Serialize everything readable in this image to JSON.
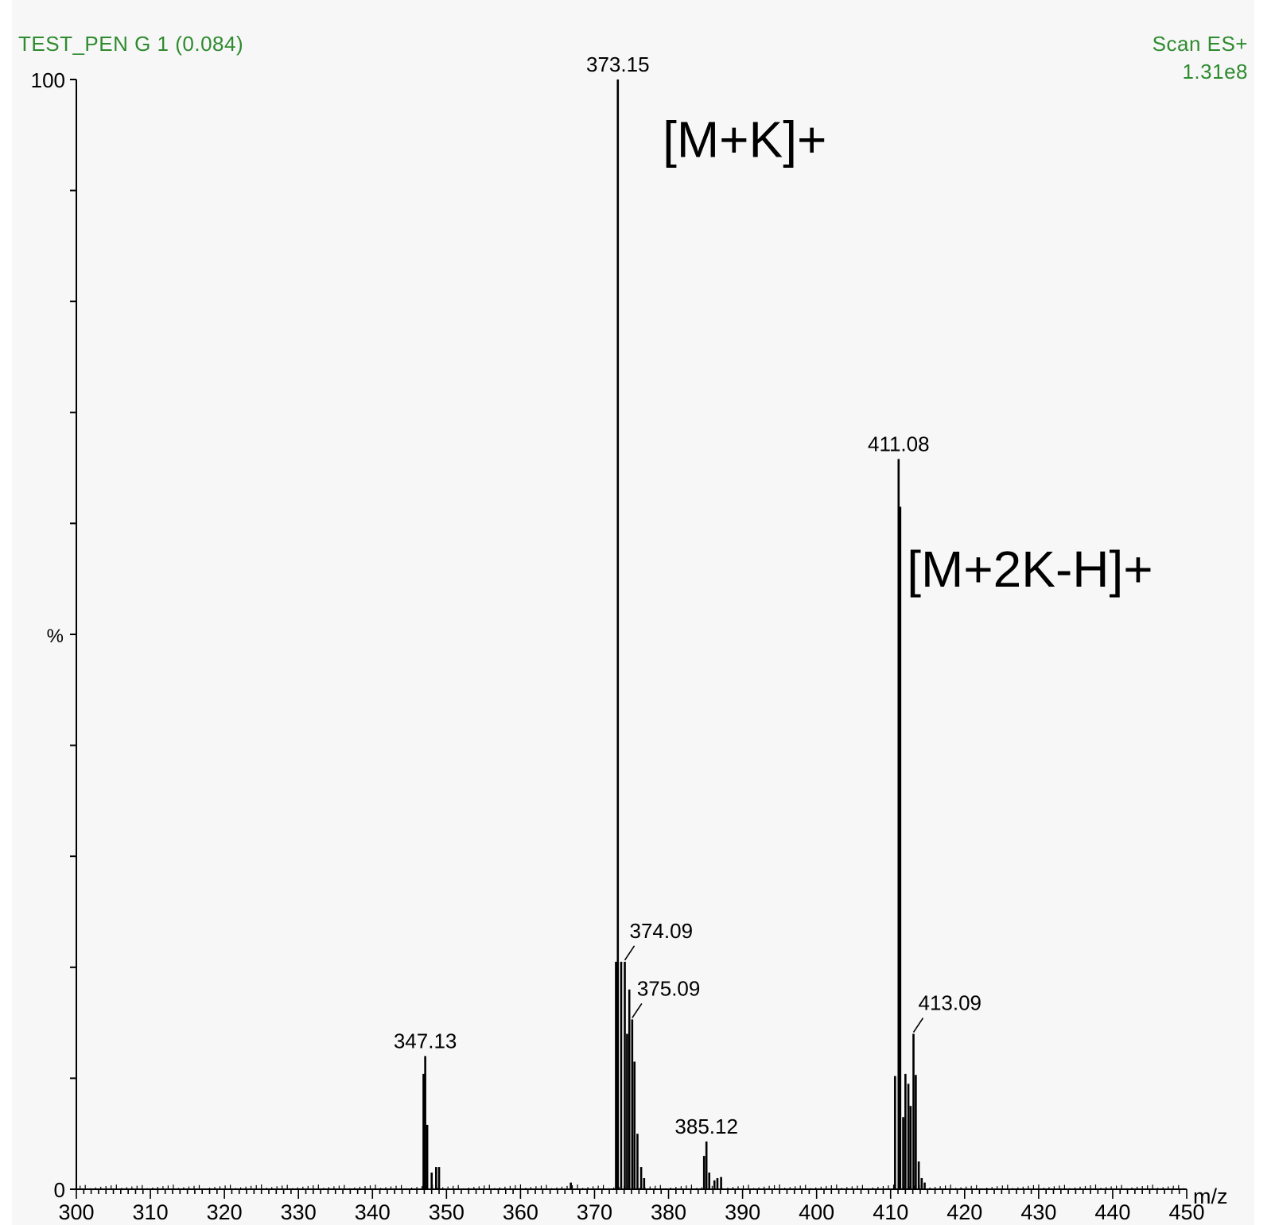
{
  "header": {
    "sample": "TEST_PEN G 1 (0.084)",
    "scan_mode": "Scan ES+",
    "base_peak_intensity": "1.31e8"
  },
  "colors": {
    "header_text": "#2e8b2e",
    "trace": "#000000",
    "background": "#f7f7f8"
  },
  "chart_data": {
    "type": "bar",
    "title": "",
    "xlabel": "m/z",
    "ylabel": "%",
    "xlim": [
      300,
      450
    ],
    "ylim": [
      0,
      100
    ],
    "x_ticks": [
      300,
      310,
      320,
      330,
      340,
      350,
      360,
      370,
      380,
      390,
      400,
      410,
      420,
      430,
      440,
      450
    ],
    "y_tick_labels": [
      "0",
      "100"
    ],
    "grid": false,
    "peaks": [
      {
        "mz": 346.9,
        "intensity": 10.4
      },
      {
        "mz": 347.13,
        "intensity": 12.0
      },
      {
        "mz": 347.4,
        "intensity": 5.8
      },
      {
        "mz": 348.0,
        "intensity": 1.5
      },
      {
        "mz": 348.6,
        "intensity": 2.0
      },
      {
        "mz": 349.0,
        "intensity": 2.0
      },
      {
        "mz": 366.8,
        "intensity": 0.6
      },
      {
        "mz": 372.9,
        "intensity": 20.5
      },
      {
        "mz": 373.15,
        "intensity": 100.0
      },
      {
        "mz": 373.6,
        "intensity": 20.5
      },
      {
        "mz": 374.09,
        "intensity": 20.5
      },
      {
        "mz": 374.4,
        "intensity": 14.0
      },
      {
        "mz": 374.7,
        "intensity": 18.0
      },
      {
        "mz": 375.09,
        "intensity": 15.3
      },
      {
        "mz": 375.4,
        "intensity": 11.5
      },
      {
        "mz": 375.8,
        "intensity": 5.0
      },
      {
        "mz": 376.3,
        "intensity": 2.0
      },
      {
        "mz": 376.7,
        "intensity": 1.0
      },
      {
        "mz": 384.8,
        "intensity": 3.0
      },
      {
        "mz": 385.12,
        "intensity": 4.3
      },
      {
        "mz": 385.5,
        "intensity": 1.5
      },
      {
        "mz": 386.2,
        "intensity": 0.8
      },
      {
        "mz": 386.6,
        "intensity": 1.0
      },
      {
        "mz": 387.1,
        "intensity": 1.1
      },
      {
        "mz": 410.6,
        "intensity": 10.2
      },
      {
        "mz": 411.08,
        "intensity": 65.8
      },
      {
        "mz": 411.3,
        "intensity": 61.5
      },
      {
        "mz": 411.7,
        "intensity": 6.5
      },
      {
        "mz": 412.0,
        "intensity": 10.4
      },
      {
        "mz": 412.4,
        "intensity": 9.5
      },
      {
        "mz": 412.7,
        "intensity": 7.5
      },
      {
        "mz": 413.09,
        "intensity": 14.0
      },
      {
        "mz": 413.4,
        "intensity": 10.3
      },
      {
        "mz": 413.8,
        "intensity": 2.5
      },
      {
        "mz": 414.2,
        "intensity": 1.0
      },
      {
        "mz": 414.6,
        "intensity": 0.6
      }
    ],
    "peak_labels": [
      {
        "text": "347.13",
        "mz": 347.13,
        "intensity": 12.0,
        "leader": false
      },
      {
        "text": "373.15",
        "mz": 373.15,
        "intensity": 100.0,
        "leader": false
      },
      {
        "text": "374.09",
        "mz": 374.09,
        "intensity": 20.5,
        "leader": true
      },
      {
        "text": "375.09",
        "mz": 375.09,
        "intensity": 15.3,
        "leader": true
      },
      {
        "text": "385.12",
        "mz": 385.12,
        "intensity": 4.3,
        "leader": false
      },
      {
        "text": "411.08",
        "mz": 411.08,
        "intensity": 65.8,
        "leader": false
      },
      {
        "text": "413.09",
        "mz": 413.09,
        "intensity": 14.0,
        "leader": true
      }
    ],
    "annotations": [
      {
        "text": "[M+K]+",
        "mz": 379.2,
        "intensity": 93.0
      },
      {
        "text": "[M+2K-H]+",
        "mz": 412.2,
        "intensity": 54.3
      }
    ]
  }
}
